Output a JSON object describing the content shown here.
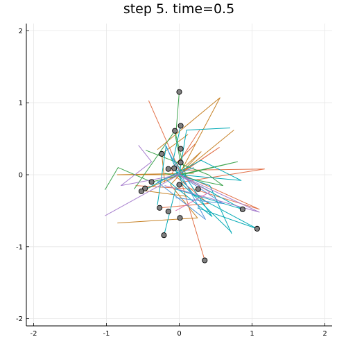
{
  "chart_data": {
    "type": "scatter",
    "title": "step 5. time=0.5",
    "xlabel": "",
    "ylabel": "",
    "xlim": [
      -2.1,
      2.1
    ],
    "ylim": [
      -2.1,
      2.1
    ],
    "x_ticks": [
      -2,
      -1,
      0,
      1,
      2
    ],
    "x_tick_labels": [
      "-2",
      "-1",
      "0",
      "1",
      "2"
    ],
    "y_ticks": [
      -2,
      -1,
      0,
      1,
      2
    ],
    "y_tick_labels": [
      "-2",
      "-1",
      "0",
      "1",
      "2"
    ],
    "grid": true,
    "legend": "none",
    "marker_color": "#808080",
    "points": [
      {
        "x": 0.0,
        "y": 1.15
      },
      {
        "x": 0.02,
        "y": 0.68
      },
      {
        "x": -0.06,
        "y": 0.61
      },
      {
        "x": 0.02,
        "y": 0.36
      },
      {
        "x": -0.24,
        "y": 0.29
      },
      {
        "x": 0.02,
        "y": 0.17
      },
      {
        "x": -0.15,
        "y": 0.08
      },
      {
        "x": -0.07,
        "y": 0.09
      },
      {
        "x": 0.0,
        "y": -0.14
      },
      {
        "x": -0.38,
        "y": -0.1
      },
      {
        "x": 0.26,
        "y": -0.2
      },
      {
        "x": -0.47,
        "y": -0.19
      },
      {
        "x": -0.52,
        "y": -0.23
      },
      {
        "x": -0.27,
        "y": -0.46
      },
      {
        "x": -0.15,
        "y": -0.51
      },
      {
        "x": 0.01,
        "y": -0.6
      },
      {
        "x": 0.87,
        "y": -0.48
      },
      {
        "x": 1.07,
        "y": -0.75
      },
      {
        "x": -0.21,
        "y": -0.84
      },
      {
        "x": 0.35,
        "y": -1.19
      }
    ],
    "trails": [
      {
        "color": "#e26f46",
        "points": [
          [
            -0.42,
            1.03
          ],
          [
            0.02,
            0.02
          ],
          [
            0.55,
            0.38
          ],
          [
            0.0,
            0.0
          ]
        ]
      },
      {
        "color": "#e26f46",
        "points": [
          [
            0.22,
            0.43
          ],
          [
            -0.14,
            0.06
          ],
          [
            1.17,
            0.08
          ],
          [
            0.05,
            -0.1
          ]
        ]
      },
      {
        "color": "#e26f46",
        "points": [
          [
            -0.6,
            -0.15
          ],
          [
            0.2,
            -0.2
          ],
          [
            1.1,
            -0.48
          ],
          [
            0.05,
            0.0
          ]
        ]
      },
      {
        "color": "#e26f46",
        "points": [
          [
            0.0,
            0.0
          ],
          [
            0.35,
            -1.19
          ]
        ]
      },
      {
        "color": "#e26f46",
        "points": [
          [
            0.28,
            0.62
          ],
          [
            -0.1,
            0.02
          ],
          [
            0.4,
            -0.4
          ],
          [
            -0.27,
            -0.46
          ]
        ]
      },
      {
        "color": "#c68125",
        "points": [
          [
            -0.3,
            0.35
          ],
          [
            0.56,
            1.07
          ],
          [
            0.0,
            0.0
          ],
          [
            -0.5,
            -0.22
          ],
          [
            0.1,
            -0.3
          ]
        ]
      },
      {
        "color": "#c68125",
        "points": [
          [
            0.75,
            0.62
          ],
          [
            0.0,
            0.0
          ],
          [
            -0.85,
            0.0
          ],
          [
            0.2,
            0.02
          ]
        ]
      },
      {
        "color": "#c68125",
        "points": [
          [
            -0.85,
            -0.67
          ],
          [
            0.25,
            -0.6
          ],
          [
            -0.12,
            -0.14
          ],
          [
            0.3,
            0.32
          ],
          [
            -0.05,
            0.0
          ]
        ]
      },
      {
        "color": "#c68125",
        "points": [
          [
            0.12,
            0.56
          ],
          [
            -0.24,
            0.29
          ],
          [
            -0.2,
            -0.1
          ]
        ]
      },
      {
        "color": "#3da44d",
        "points": [
          [
            -0.46,
            0.34
          ],
          [
            0.4,
            0.0
          ],
          [
            0.6,
            -0.15
          ],
          [
            -0.2,
            0.02
          ]
        ]
      },
      {
        "color": "#3da44d",
        "points": [
          [
            -1.02,
            -0.21
          ],
          [
            -0.84,
            0.1
          ],
          [
            -0.38,
            -0.1
          ],
          [
            0.8,
            0.18
          ],
          [
            0.0,
            0.0
          ]
        ]
      },
      {
        "color": "#3da44d",
        "points": [
          [
            -0.62,
            -0.2
          ],
          [
            -0.06,
            0.61
          ],
          [
            0.1,
            -0.05
          ]
        ]
      },
      {
        "color": "#3da44d",
        "points": [
          [
            0.0,
            1.15
          ],
          [
            -0.05,
            0.52
          ],
          [
            0.02,
            0.17
          ]
        ]
      },
      {
        "color": "#00a9b5",
        "points": [
          [
            0.7,
            0.65
          ],
          [
            0.1,
            0.62
          ],
          [
            0.0,
            0.0
          ],
          [
            0.42,
            -0.15
          ],
          [
            0.72,
            -0.82
          ]
        ]
      },
      {
        "color": "#00a9b5",
        "points": [
          [
            -0.52,
            -0.23
          ],
          [
            0.3,
            0.2
          ],
          [
            0.85,
            -0.08
          ],
          [
            0.0,
            0.0
          ]
        ]
      },
      {
        "color": "#00a9b5",
        "points": [
          [
            0.25,
            -0.46
          ],
          [
            1.07,
            -0.75
          ],
          [
            0.2,
            -0.28
          ],
          [
            -0.1,
            0.12
          ]
        ]
      },
      {
        "color": "#00a9b5",
        "points": [
          [
            -0.3,
            -0.42
          ],
          [
            -0.18,
            0.4
          ],
          [
            0.05,
            -0.14
          ],
          [
            0.72,
            -0.8
          ]
        ]
      },
      {
        "color": "#00a9b5",
        "points": [
          [
            0.02,
            0.68
          ],
          [
            -0.08,
            0.22
          ],
          [
            0.45,
            -0.58
          ],
          [
            -0.2,
            -0.05
          ]
        ]
      },
      {
        "color": "#00a9b5",
        "points": [
          [
            -0.21,
            -0.84
          ],
          [
            -0.05,
            -0.2
          ],
          [
            0.87,
            -0.48
          ],
          [
            0.0,
            0.0
          ]
        ]
      },
      {
        "color": "#4f94d8",
        "points": [
          [
            -0.2,
            0.42
          ],
          [
            0.36,
            -0.62
          ],
          [
            -0.3,
            -0.1
          ],
          [
            0.2,
            0.1
          ]
        ]
      },
      {
        "color": "#4f94d8",
        "points": [
          [
            0.0,
            0.0
          ],
          [
            0.6,
            -0.4
          ],
          [
            -0.05,
            -0.32
          ]
        ]
      },
      {
        "color": "#a77fce",
        "points": [
          [
            -1.02,
            -0.57
          ],
          [
            0.0,
            0.0
          ],
          [
            1.1,
            -0.52
          ],
          [
            -0.2,
            -0.15
          ]
        ]
      },
      {
        "color": "#a77fce",
        "points": [
          [
            -0.56,
            0.41
          ],
          [
            -0.38,
            0.18
          ],
          [
            -0.8,
            -0.15
          ],
          [
            0.0,
            0.0
          ]
        ]
      },
      {
        "color": "#d96fb1",
        "points": [
          [
            0.0,
            0.0
          ],
          [
            0.42,
            -0.24
          ],
          [
            -0.05,
            -0.5
          ]
        ]
      }
    ]
  }
}
